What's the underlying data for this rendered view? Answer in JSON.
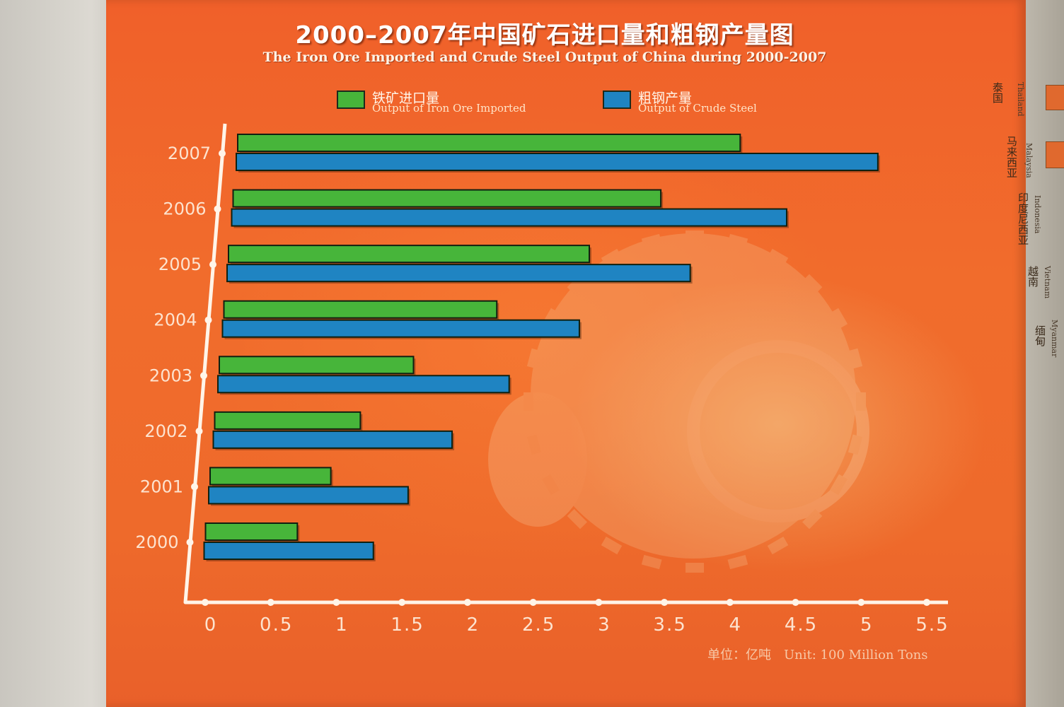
{
  "title_zh": "2000–2007年中国矿石进口量和粗钢产量图",
  "title_en": "The Iron Ore Imported and Crude Steel Output of China during 2000-2007",
  "legend": [
    {
      "zh": "铁矿进口量",
      "en": "Output of Iron Ore Imported",
      "color": "#47b53a"
    },
    {
      "zh": "粗钢产量",
      "en": "Output of Crude Steel",
      "color": "#1f84c2"
    }
  ],
  "unit_label": "单位：亿吨　Unit: 100 Million Tons",
  "side_countries": [
    {
      "zh": "泰国",
      "en": "Thailand"
    },
    {
      "zh": "马来西亚",
      "en": "Malaysia"
    },
    {
      "zh": "印度尼西亚",
      "en": "Indonesia"
    },
    {
      "zh": "越南",
      "en": "Vietnam"
    },
    {
      "zh": "缅甸",
      "en": "Myanmar"
    }
  ],
  "chart_data": {
    "type": "bar",
    "orientation": "horizontal",
    "categories": [
      "2000",
      "2001",
      "2002",
      "2003",
      "2004",
      "2005",
      "2006",
      "2007"
    ],
    "series": [
      {
        "name": "铁矿进口量 Output of Iron Ore Imported",
        "values": [
          0.7,
          0.92,
          1.11,
          1.48,
          2.08,
          2.75,
          3.26,
          3.83
        ],
        "color": "#47b53a"
      },
      {
        "name": "粗钢产量 Output of Crude Steel",
        "values": [
          1.29,
          1.52,
          1.82,
          2.22,
          2.72,
          3.53,
          4.23,
          4.89
        ],
        "color": "#1f84c2"
      }
    ],
    "xlim": [
      0,
      5.5
    ],
    "xticks": [
      "0",
      "0.5",
      "1",
      "1.5",
      "2",
      "2.5",
      "3",
      "3.5",
      "4",
      "4.5",
      "5",
      "5.5"
    ],
    "xlabel": "单位：亿吨　Unit: 100 Million Tons",
    "ylabel": "",
    "grid": false,
    "legend_position": "top"
  }
}
